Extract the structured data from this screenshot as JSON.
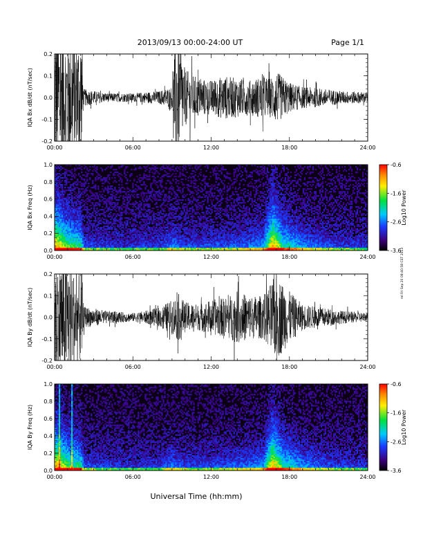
{
  "header": {
    "title": "2013/09/13  00:00-24:00 UT",
    "page": "Page 1/1"
  },
  "footer": {
    "xlabel": "Universal Time (hh:mm)",
    "side_note": "rel Fri Sep 20 08:40:58 CST 2013"
  },
  "chart_data": [
    {
      "type": "line",
      "ylabel": "IQA Bx dB/dt (nT/sec)",
      "xlim": [
        0,
        24
      ],
      "ylim": [
        -0.2,
        0.2
      ],
      "xticks": [
        "00:00",
        "06:00",
        "12:00",
        "18:00",
        "24:00"
      ],
      "yticks": [
        "-0.2",
        "-0.1",
        "0.0",
        "0.1",
        "0.2"
      ],
      "series": [
        {
          "envelope": [
            [
              0,
              0.35
            ],
            [
              0.5,
              0.35
            ],
            [
              1,
              0.3
            ],
            [
              1.5,
              0.28
            ],
            [
              2.1,
              0.3
            ],
            [
              2.2,
              0.04
            ],
            [
              4,
              0.02
            ],
            [
              6,
              0.02
            ],
            [
              7,
              0.025
            ],
            [
              8,
              0.03
            ],
            [
              9,
              0.05
            ],
            [
              9.3,
              0.3
            ],
            [
              10,
              0.13
            ],
            [
              11,
              0.09
            ],
            [
              12,
              0.08
            ],
            [
              13,
              0.1
            ],
            [
              14,
              0.09
            ],
            [
              15,
              0.08
            ],
            [
              16,
              0.1
            ],
            [
              16.5,
              0.09
            ],
            [
              17,
              0.12
            ],
            [
              18,
              0.07
            ],
            [
              19,
              0.05
            ],
            [
              20,
              0.045
            ],
            [
              22,
              0.03
            ],
            [
              24,
              0.025
            ]
          ]
        }
      ]
    },
    {
      "type": "heatmap",
      "ylabel": "IQA Bx Freq (Hz)",
      "xlim": [
        0,
        24
      ],
      "ylim": [
        0,
        1.0
      ],
      "xticks": [
        "00:00",
        "06:00",
        "12:00",
        "18:00",
        "24:00"
      ],
      "yticks": [
        "0.0",
        "0.2",
        "0.4",
        "0.6",
        "0.8",
        "1.0"
      ],
      "colorbar": {
        "label": "Log10 Power",
        "range": [
          -3.6,
          -0.6
        ],
        "ticks": [
          "-0.6",
          "-1.6",
          "-2.6",
          "-3.6"
        ]
      },
      "activity": [
        [
          0,
          0.9
        ],
        [
          1,
          0.6
        ],
        [
          2,
          0.5
        ],
        [
          2.3,
          0.15
        ],
        [
          5,
          0.08
        ],
        [
          8,
          0.1
        ],
        [
          9,
          0.25
        ],
        [
          10,
          0.15
        ],
        [
          12,
          0.15
        ],
        [
          14,
          0.2
        ],
        [
          16,
          0.3
        ],
        [
          16.7,
          0.9
        ],
        [
          17.5,
          0.5
        ],
        [
          19,
          0.3
        ],
        [
          21,
          0.15
        ],
        [
          24,
          0.08
        ]
      ]
    },
    {
      "type": "line",
      "ylabel": "IQA By dB/dt (nT/sec)",
      "xlim": [
        0,
        24
      ],
      "ylim": [
        -0.2,
        0.2
      ],
      "xticks": [
        "00:00",
        "06:00",
        "12:00",
        "18:00",
        "24:00"
      ],
      "yticks": [
        "-0.2",
        "-0.1",
        "0.0",
        "0.1",
        "0.2"
      ],
      "series": [
        {
          "envelope": [
            [
              0,
              0.3
            ],
            [
              0.5,
              0.3
            ],
            [
              1,
              0.28
            ],
            [
              1.5,
              0.2
            ],
            [
              2.1,
              0.22
            ],
            [
              2.2,
              0.05
            ],
            [
              4,
              0.03
            ],
            [
              6,
              0.02
            ],
            [
              7,
              0.03
            ],
            [
              8,
              0.045
            ],
            [
              9,
              0.08
            ],
            [
              9.5,
              0.11
            ],
            [
              10,
              0.07
            ],
            [
              11,
              0.06
            ],
            [
              12,
              0.08
            ],
            [
              13,
              0.09
            ],
            [
              14,
              0.12
            ],
            [
              15,
              0.1
            ],
            [
              16,
              0.1
            ],
            [
              17,
              0.2
            ],
            [
              18,
              0.12
            ],
            [
              19,
              0.06
            ],
            [
              20,
              0.05
            ],
            [
              22,
              0.03
            ],
            [
              24,
              0.02
            ]
          ]
        }
      ]
    },
    {
      "type": "heatmap",
      "ylabel": "IQA By Freq (Hz)",
      "xlim": [
        0,
        24
      ],
      "ylim": [
        0,
        1.0
      ],
      "xticks": [
        "00:00",
        "06:00",
        "12:00",
        "18:00",
        "24:00"
      ],
      "yticks": [
        "0.0",
        "0.2",
        "0.4",
        "0.6",
        "0.8",
        "1.0"
      ],
      "colorbar": {
        "label": "Log10 Power",
        "range": [
          -3.6,
          -0.6
        ],
        "ticks": [
          "-0.6",
          "-1.6",
          "-2.6",
          "-3.6"
        ]
      },
      "activity": [
        [
          0,
          0.9
        ],
        [
          1,
          0.6
        ],
        [
          2,
          0.5
        ],
        [
          2.3,
          0.15
        ],
        [
          5,
          0.08
        ],
        [
          8,
          0.1
        ],
        [
          9,
          0.25
        ],
        [
          10,
          0.15
        ],
        [
          12,
          0.15
        ],
        [
          14,
          0.2
        ],
        [
          16,
          0.3
        ],
        [
          16.7,
          0.9
        ],
        [
          17.5,
          0.5
        ],
        [
          19,
          0.3
        ],
        [
          21,
          0.15
        ],
        [
          24,
          0.08
        ]
      ]
    }
  ]
}
